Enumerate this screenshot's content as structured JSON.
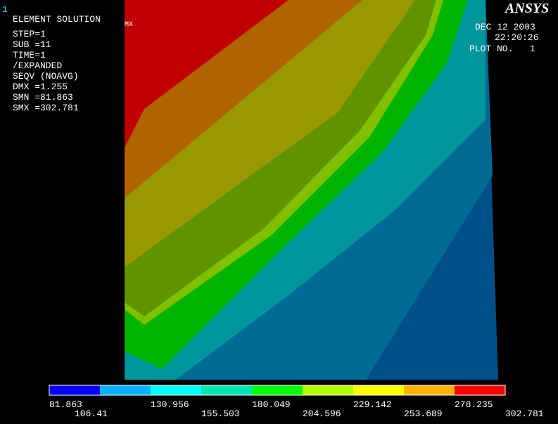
{
  "window_number": "1",
  "header": {
    "title": "ELEMENT SOLUTION",
    "lines": [
      "STEP=1",
      "SUB =11",
      "TIME=1",
      "/EXPANDED",
      "SEQV      (NOAVG)",
      "DMX =1.255",
      "SMN =81.863",
      "SMX =302.781"
    ]
  },
  "max_marker": "MX",
  "logo": "ANSYS",
  "info": {
    "date": "DEC 12 2003",
    "time": "22:20:26",
    "plot": "PLOT NO.   1"
  },
  "legend": {
    "colors": [
      "#0000ff",
      "#00b4ff",
      "#00ffff",
      "#00e6b4",
      "#00ff00",
      "#b4ff00",
      "#ffff00",
      "#ffb400",
      "#ff0000"
    ],
    "labels": [
      "81.863",
      "106.41",
      "130.956",
      "155.503",
      "180.049",
      "204.596",
      "229.142",
      "253.689",
      "278.235",
      "302.781"
    ]
  }
}
